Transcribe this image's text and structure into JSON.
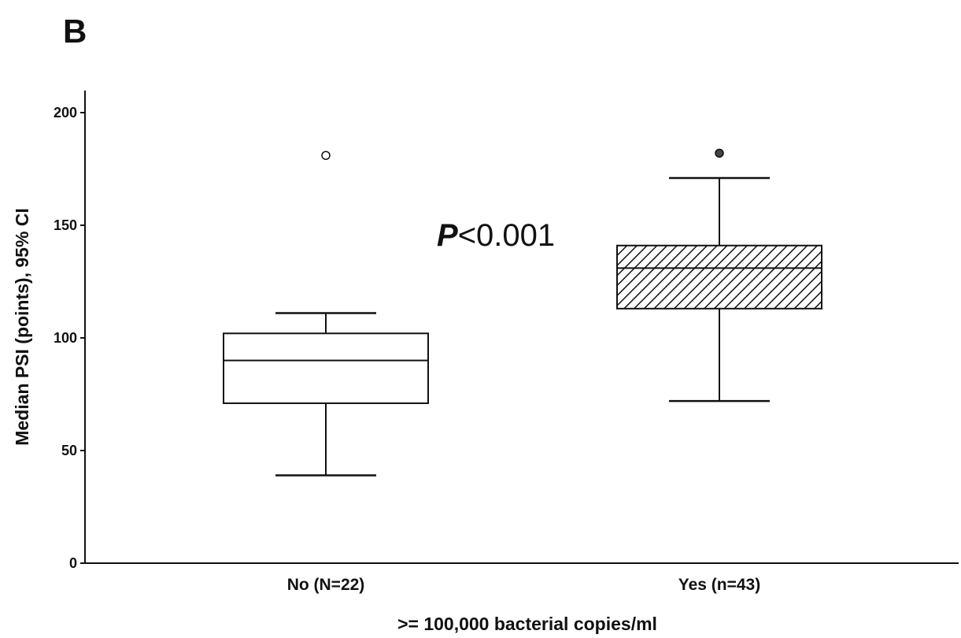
{
  "chart_data": {
    "type": "box",
    "panel_label": "B",
    "xlabel": ">= 100,000 bacterial copies/ml",
    "ylabel": "Median PSI (points), 95% CI",
    "ylim": [
      0,
      200
    ],
    "yticks": [
      0,
      50,
      100,
      150,
      200
    ],
    "categories": [
      "No (N=22)",
      "Yes (n=43)"
    ],
    "boxes": [
      {
        "category": "No (N=22)",
        "whisker_low": 39,
        "q1": 71,
        "median": 90,
        "q3": 102,
        "whisker_high": 111,
        "outliers": [
          181
        ],
        "fill": "plain"
      },
      {
        "category": "Yes (n=43)",
        "whisker_low": 72,
        "q1": 113,
        "median": 131,
        "q3": 141,
        "whisker_high": 171,
        "outliers": [
          182
        ],
        "fill": "hatched"
      }
    ],
    "annotation": {
      "italic_part": "P",
      "rest": "<0.001"
    },
    "grid": false
  }
}
